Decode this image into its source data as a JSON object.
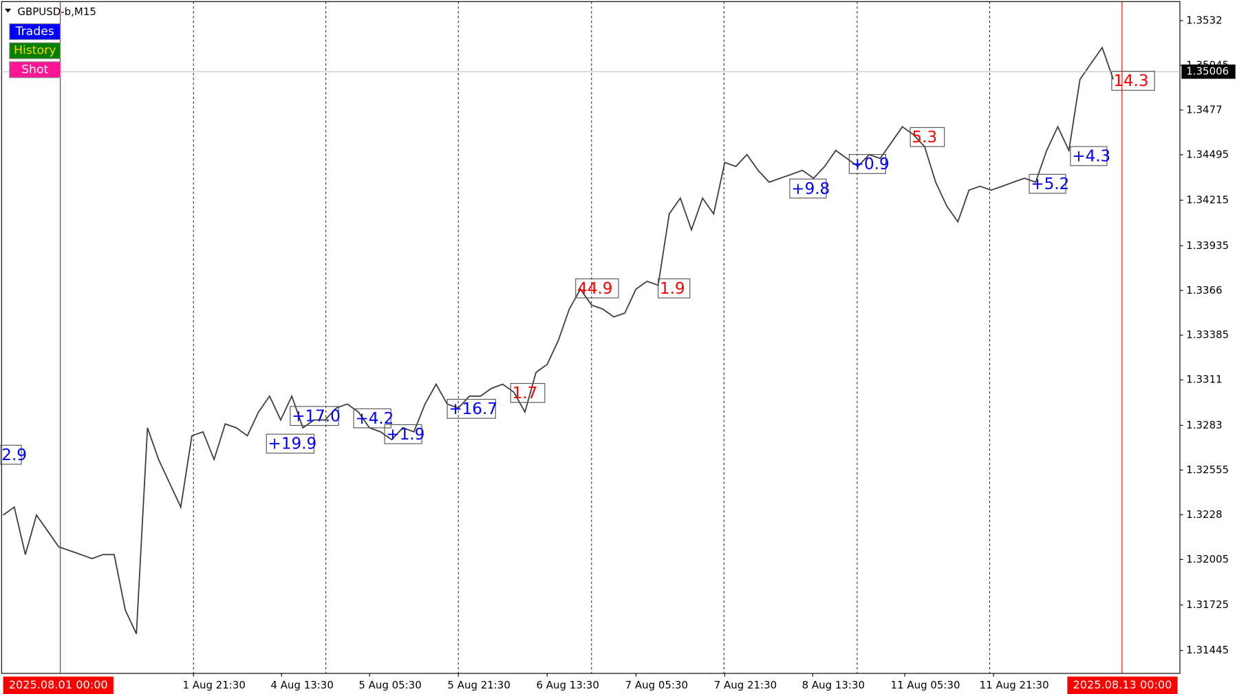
{
  "symbol": "GBPUSD-b,M15",
  "buttons": [
    {
      "label": "Trades",
      "color": "#0000ff",
      "text_color": "#ffffff"
    },
    {
      "label": "History",
      "color": "#008000",
      "text_color": "#ffd700"
    },
    {
      "label": "Shot",
      "color": "#ff1493",
      "text_color": "#ffffff"
    }
  ],
  "chart_data": {
    "type": "line",
    "color": "#404040",
    "values": [
      1.32278,
      1.32327,
      1.32035,
      1.32278,
      1.32181,
      1.32083,
      1.32059,
      1.32035,
      1.3201,
      1.32035,
      1.32035,
      1.31694,
      1.31547,
      1.32815,
      1.3262,
      1.32473,
      1.32327,
      1.32766,
      1.3279,
      1.3262,
      1.32839,
      1.32815,
      1.32766,
      1.32912,
      1.3301,
      1.32863,
      1.3301,
      1.32815,
      1.32863,
      1.32863,
      1.32936,
      1.32961,
      1.32912,
      1.32815,
      1.3279,
      1.32742,
      1.32815,
      1.3279,
      1.32961,
      1.33083,
      1.32961,
      1.32936,
      1.3301,
      1.3301,
      1.33058,
      1.33083,
      1.33034,
      1.32912,
      1.33156,
      1.33205,
      1.33351,
      1.33546,
      1.33668,
      1.3357,
      1.33546,
      1.33497,
      1.33521,
      1.33668,
      1.33716,
      1.33692,
      1.34131,
      1.34228,
      1.34033,
      1.34228,
      1.34131,
      1.34447,
      1.34423,
      1.34496,
      1.34399,
      1.34326,
      1.3435,
      1.34374,
      1.34399,
      1.3435,
      1.34423,
      1.34521,
      1.34472,
      1.34423,
      1.34496,
      1.34472,
      1.34569,
      1.34667,
      1.34618,
      1.34545,
      1.34326,
      1.34179,
      1.34082,
      1.34277,
      1.34301,
      1.34277,
      1.34301,
      1.34326,
      1.3435,
      1.34326,
      1.34521,
      1.34667,
      1.34521,
      1.34959,
      1.35057,
      1.35154,
      1.34959
    ],
    "ylim": [
      1.31304,
      1.35437
    ],
    "yticks": [
      1.3532,
      1.35045,
      1.3477,
      1.34495,
      1.34215,
      1.33935,
      1.3366,
      1.33385,
      1.3311,
      1.3283,
      1.32555,
      1.3228,
      1.32005,
      1.31725,
      1.31445
    ],
    "current_price": 1.35006,
    "time_ticks": [
      "1 Aug 21:30",
      "4 Aug 13:30",
      "5 Aug 05:30",
      "5 Aug 21:30",
      "6 Aug 13:30",
      "7 Aug 05:30",
      "7 Aug 21:30",
      "8 Aug 13:30",
      "11 Aug 05:30",
      "11 Aug 21:30"
    ],
    "period_markers": [
      "2025.08.01 00:00",
      "2025.08.13 00:00"
    ],
    "trade_labels": [
      {
        "text": "2.9",
        "color": "#0000ff"
      },
      {
        "text": "+19.9",
        "color": "#0000ff"
      },
      {
        "text": "+17.0",
        "color": "#0000ff"
      },
      {
        "text": "+4.2",
        "color": "#0000ff"
      },
      {
        "text": "+1.9",
        "color": "#0000ff"
      },
      {
        "text": "+16.7",
        "color": "#0000ff"
      },
      {
        "text": "1.7",
        "color": "#ff0000"
      },
      {
        "text": "44.9",
        "color": "#ff0000"
      },
      {
        "text": "1.9",
        "color": "#ff0000"
      },
      {
        "text": "+9.8",
        "color": "#0000ff"
      },
      {
        "text": "+0.9",
        "color": "#0000ff"
      },
      {
        "text": "5.3",
        "color": "#ff0000"
      },
      {
        "text": "+5.2",
        "color": "#0000ff"
      },
      {
        "text": "+4.3",
        "color": "#0000ff"
      },
      {
        "text": "14.3",
        "color": "#ff0000"
      }
    ]
  }
}
